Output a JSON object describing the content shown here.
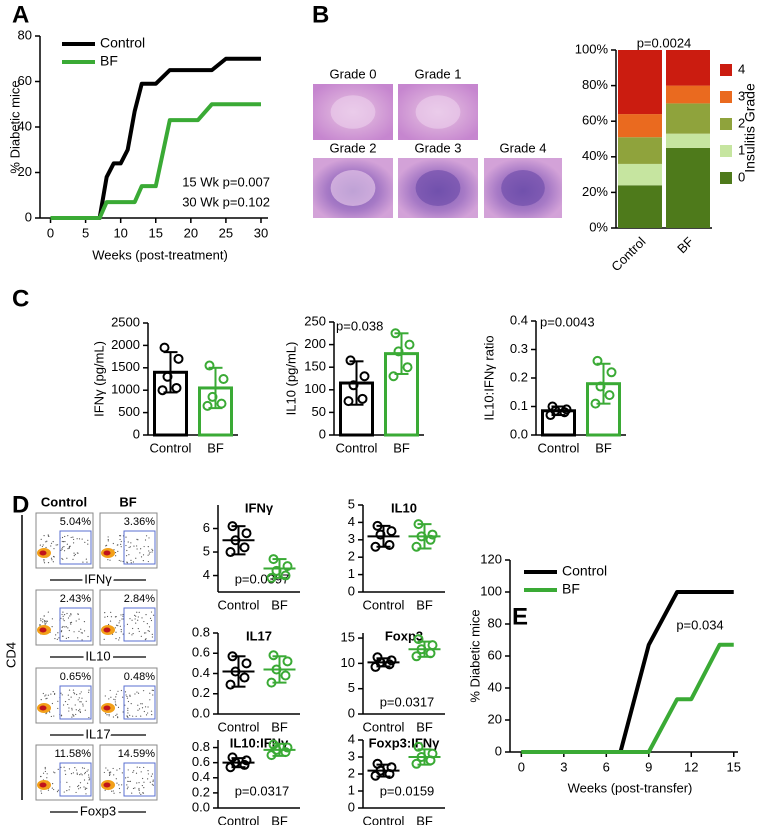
{
  "panels": [
    "A",
    "B",
    "C",
    "D",
    "E"
  ],
  "histology": [
    "Grade 0",
    "Grade 1",
    "Grade 2",
    "Grade 3",
    "Grade 4"
  ],
  "flow": {
    "columns": [
      "Control",
      "BF"
    ],
    "y_label": "CD4",
    "rows": [
      {
        "marker": "IFNγ",
        "values": [
          "5.04%",
          "3.36%"
        ]
      },
      {
        "marker": "IL10",
        "values": [
          "2.43%",
          "2.84%"
        ]
      },
      {
        "marker": "IL17",
        "values": [
          "0.65%",
          "0.48%"
        ]
      },
      {
        "marker": "Foxp3",
        "values": [
          "11.58%",
          "14.59%"
        ]
      }
    ]
  },
  "chart_data": [
    {
      "type": "line",
      "x": [
        0,
        7,
        8,
        9,
        10,
        11,
        12,
        13,
        15,
        17,
        21,
        23,
        25,
        30
      ],
      "series": [
        {
          "name": "Control",
          "color": "#000000",
          "values": [
            0,
            0,
            18,
            24,
            24,
            30,
            47,
            59,
            59,
            65,
            65,
            65,
            70,
            70
          ]
        },
        {
          "name": "BF",
          "color": "#3aaa35",
          "values": [
            0,
            0,
            7,
            7,
            7,
            7,
            7,
            14,
            14,
            43,
            43,
            50,
            50,
            50
          ]
        }
      ],
      "xlim": [
        -1.5,
        31
      ],
      "xticks": [
        0,
        5,
        10,
        15,
        20,
        25,
        30
      ],
      "ylim": [
        0,
        80
      ],
      "yticks": [
        0,
        20,
        40,
        60,
        80
      ],
      "xlabel": "Weeks (post-treatment)",
      "ylabel": "% Diabetic mice",
      "annotations": [
        "15 Wk p=0.007",
        "30 Wk p=0.102"
      ]
    },
    {
      "type": "stacked_bar",
      "categories": [
        "Control",
        "BF"
      ],
      "series": [
        {
          "name": "0",
          "color": "#4e7a1b",
          "values": [
            24,
            45
          ]
        },
        {
          "name": "1",
          "color": "#c6e5a0",
          "values": [
            12,
            8
          ]
        },
        {
          "name": "2",
          "color": "#8fa33c",
          "values": [
            15,
            17
          ]
        },
        {
          "name": "3",
          "color": "#ea6a1f",
          "values": [
            13,
            10
          ]
        },
        {
          "name": "4",
          "color": "#cb1c10",
          "values": [
            36,
            20
          ]
        }
      ],
      "ylim": [
        0,
        100
      ],
      "yticks": [
        {
          "value": 0,
          "label": "0%"
        },
        {
          "value": 20,
          "label": "20%"
        },
        {
          "value": 40,
          "label": "40%"
        },
        {
          "value": 60,
          "label": "60%"
        },
        {
          "value": 80,
          "label": "80%"
        },
        {
          "value": 100,
          "label": "100%"
        }
      ],
      "legend_title": "Insulitis Grade",
      "annotations": [
        "p=0.0024"
      ]
    },
    {
      "type": "bar",
      "categories": [
        "Control",
        "BF"
      ],
      "colors": [
        "#000000",
        "#3aaa35"
      ],
      "values": [
        1400,
        1050
      ],
      "errors": [
        450,
        450
      ],
      "points": [
        [
          1000,
          1050,
          1300,
          1700,
          1950
        ],
        [
          650,
          700,
          850,
          1250,
          1550
        ]
      ],
      "ylim": [
        0,
        2500
      ],
      "yticks": [
        0,
        500,
        1000,
        1500,
        2000,
        2500
      ],
      "ylabel": "IFNγ (pg/mL)"
    },
    {
      "type": "bar",
      "categories": [
        "Control",
        "BF"
      ],
      "colors": [
        "#000000",
        "#3aaa35"
      ],
      "values": [
        115,
        180
      ],
      "errors": [
        48,
        45
      ],
      "points": [
        [
          75,
          80,
          110,
          130,
          165
        ],
        [
          130,
          150,
          185,
          200,
          225
        ]
      ],
      "ylim": [
        0,
        250
      ],
      "yticks": [
        0,
        50,
        100,
        150,
        200,
        250
      ],
      "ylabel": "IL10 (pg/mL)",
      "annotations": [
        "p=0.038"
      ]
    },
    {
      "type": "bar",
      "categories": [
        "Control",
        "BF"
      ],
      "colors": [
        "#000000",
        "#3aaa35"
      ],
      "values": [
        0.085,
        0.18
      ],
      "errors": [
        0.015,
        0.07
      ],
      "points": [
        [
          0.07,
          0.08,
          0.085,
          0.09,
          0.1
        ],
        [
          0.11,
          0.14,
          0.17,
          0.22,
          0.26
        ]
      ],
      "ylim": [
        0,
        0.4
      ],
      "yticks": [
        {
          "value": 0,
          "label": "0.0"
        },
        0.1,
        0.2,
        0.3,
        0.4
      ],
      "ylabel": "IL10:IFNγ ratio",
      "annotations": [
        "p=0.0043"
      ]
    },
    {
      "type": "dot",
      "title": "IFNγ",
      "categories": [
        "Control",
        "BF"
      ],
      "colors": [
        "#000000",
        "#3aaa35"
      ],
      "values": [
        5.5,
        4.3
      ],
      "errors": [
        0.6,
        0.4
      ],
      "points": [
        [
          5.0,
          5.2,
          5.5,
          5.8,
          6.1
        ],
        [
          3.9,
          4.0,
          4.2,
          4.4,
          4.7
        ]
      ],
      "ylim": [
        3.3,
        7
      ],
      "yticks": [
        4,
        5,
        6
      ],
      "annotations": [
        "p=0.0397"
      ]
    },
    {
      "type": "dot",
      "title": "IL10",
      "categories": [
        "Control",
        "BF"
      ],
      "colors": [
        "#000000",
        "#3aaa35"
      ],
      "values": [
        3.2,
        3.2
      ],
      "errors": [
        0.6,
        0.7
      ],
      "points": [
        [
          2.6,
          2.7,
          3.3,
          3.5,
          3.8
        ],
        [
          2.6,
          3.0,
          3.2,
          3.3,
          3.9
        ]
      ],
      "ylim": [
        0,
        5
      ],
      "yticks": [
        0,
        1,
        2,
        3,
        4,
        5
      ]
    },
    {
      "type": "dot",
      "title": "IL17",
      "categories": [
        "Control",
        "BF"
      ],
      "colors": [
        "#000000",
        "#3aaa35"
      ],
      "values": [
        0.42,
        0.44
      ],
      "errors": [
        0.15,
        0.13
      ],
      "points": [
        [
          0.29,
          0.36,
          0.42,
          0.5,
          0.57
        ],
        [
          0.31,
          0.38,
          0.44,
          0.52,
          0.58
        ]
      ],
      "ylim": [
        0,
        0.8
      ],
      "yticks": [
        {
          "value": 0,
          "label": "0.0"
        },
        0.2,
        0.4,
        0.6,
        0.8
      ]
    },
    {
      "type": "dot",
      "title": "Foxp3",
      "categories": [
        "Control",
        "BF"
      ],
      "colors": [
        "#000000",
        "#3aaa35"
      ],
      "values": [
        10.2,
        12.8
      ],
      "errors": [
        0.8,
        1.5
      ],
      "points": [
        [
          9.3,
          9.8,
          10.2,
          10.6,
          11.2
        ],
        [
          11.4,
          12.0,
          12.8,
          13.6,
          14.8
        ]
      ],
      "ylim": [
        0,
        16
      ],
      "yticks": [
        0,
        5,
        10,
        15
      ],
      "annotations": [
        "p=0.0317"
      ]
    },
    {
      "type": "dot",
      "title": "IL10:IFNγ",
      "categories": [
        "Control",
        "BF"
      ],
      "colors": [
        "#000000",
        "#3aaa35"
      ],
      "values": [
        0.6,
        0.77
      ],
      "errors": [
        0.06,
        0.08
      ],
      "points": [
        [
          0.54,
          0.57,
          0.6,
          0.63,
          0.67
        ],
        [
          0.7,
          0.74,
          0.77,
          0.8,
          0.84
        ]
      ],
      "ylim": [
        0,
        0.9
      ],
      "yticks": [
        {
          "value": 0,
          "label": "0.0"
        },
        0.2,
        0.4,
        0.6,
        0.8
      ],
      "annotations": [
        "p=0.0317"
      ]
    },
    {
      "type": "dot",
      "title": "Foxp3:IFNγ",
      "categories": [
        "Control",
        "BF"
      ],
      "colors": [
        "#000000",
        "#3aaa35"
      ],
      "values": [
        2.2,
        3.0
      ],
      "errors": [
        0.35,
        0.45
      ],
      "points": [
        [
          1.9,
          2.0,
          2.2,
          2.4,
          2.6
        ],
        [
          2.6,
          2.8,
          3.0,
          3.2,
          3.6
        ]
      ],
      "ylim": [
        0,
        4
      ],
      "yticks": [
        0,
        1,
        2,
        3,
        4
      ],
      "annotations": [
        "p=0.0159"
      ]
    },
    {
      "type": "line",
      "x": [
        0,
        7,
        9,
        11,
        12,
        14,
        15
      ],
      "series": [
        {
          "name": "Control",
          "color": "#000000",
          "values": [
            0,
            0,
            67,
            100,
            100,
            100,
            100
          ]
        },
        {
          "name": "BF",
          "color": "#3aaa35",
          "values": [
            0,
            0,
            0,
            33,
            33,
            67,
            67
          ]
        }
      ],
      "xlim": [
        -0.8,
        15.3
      ],
      "xticks": [
        0,
        3,
        6,
        9,
        12,
        15
      ],
      "ylim": [
        0,
        120
      ],
      "yticks": [
        0,
        20,
        40,
        60,
        80,
        100,
        120
      ],
      "xlabel": "Weeks (post-transfer)",
      "ylabel": "% Diabetic mice",
      "annotations": [
        "p=0.034"
      ]
    }
  ]
}
